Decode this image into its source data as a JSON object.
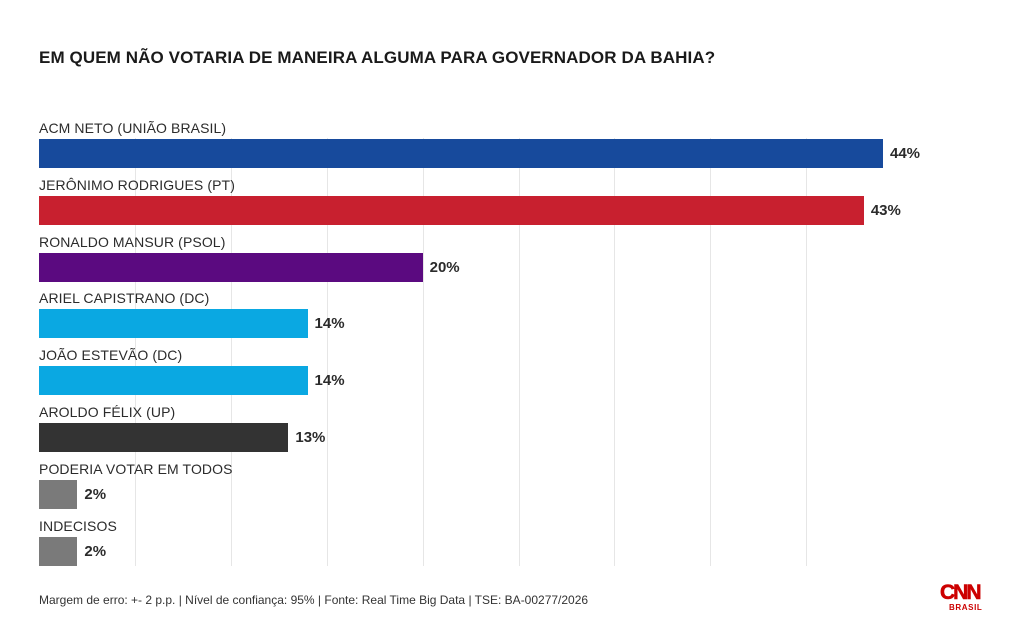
{
  "title": "EM QUEM NÃO VOTARIA DE MANEIRA ALGUMA PARA GOVERNADOR DA BAHIA?",
  "chart_data": {
    "type": "bar",
    "orientation": "horizontal",
    "title": "EM QUEM NÃO VOTARIA DE MANEIRA ALGUMA PARA GOVERNADOR DA BAHIA?",
    "xlabel": "",
    "ylabel": "",
    "xlim": [
      0,
      44
    ],
    "grid": true,
    "value_suffix": "%",
    "categories": [
      "ACM NETO (UNIÃO BRASIL)",
      "JERÔNIMO RODRIGUES (PT)",
      "RONALDO MANSUR (PSOL)",
      "ARIEL CAPISTRANO (DC)",
      "JOÃO ESTEVÃO (DC)",
      "AROLDO FÉLIX (UP)",
      "PODERIA VOTAR EM TODOS",
      "INDECISOS"
    ],
    "values": [
      44,
      43,
      20,
      14,
      14,
      13,
      2,
      2
    ],
    "value_labels": [
      "44%",
      "43%",
      "20%",
      "14%",
      "14%",
      "13%",
      "2%",
      "2%"
    ],
    "colors": [
      "#174a9c",
      "#c8202f",
      "#5b0a80",
      "#0aa8e2",
      "#0aa8e2",
      "#333333",
      "#7a7a7a",
      "#7a7a7a"
    ]
  },
  "footer": "Margem de erro: +- 2 p.p. | Nível de confiança: 95% | Fonte: Real Time Big Data | TSE: BA-00277/2026",
  "logo": {
    "word": "CNN",
    "sub": "BRASIL",
    "color": "#cc0000",
    "icon": "cnn-brasil-logo"
  }
}
